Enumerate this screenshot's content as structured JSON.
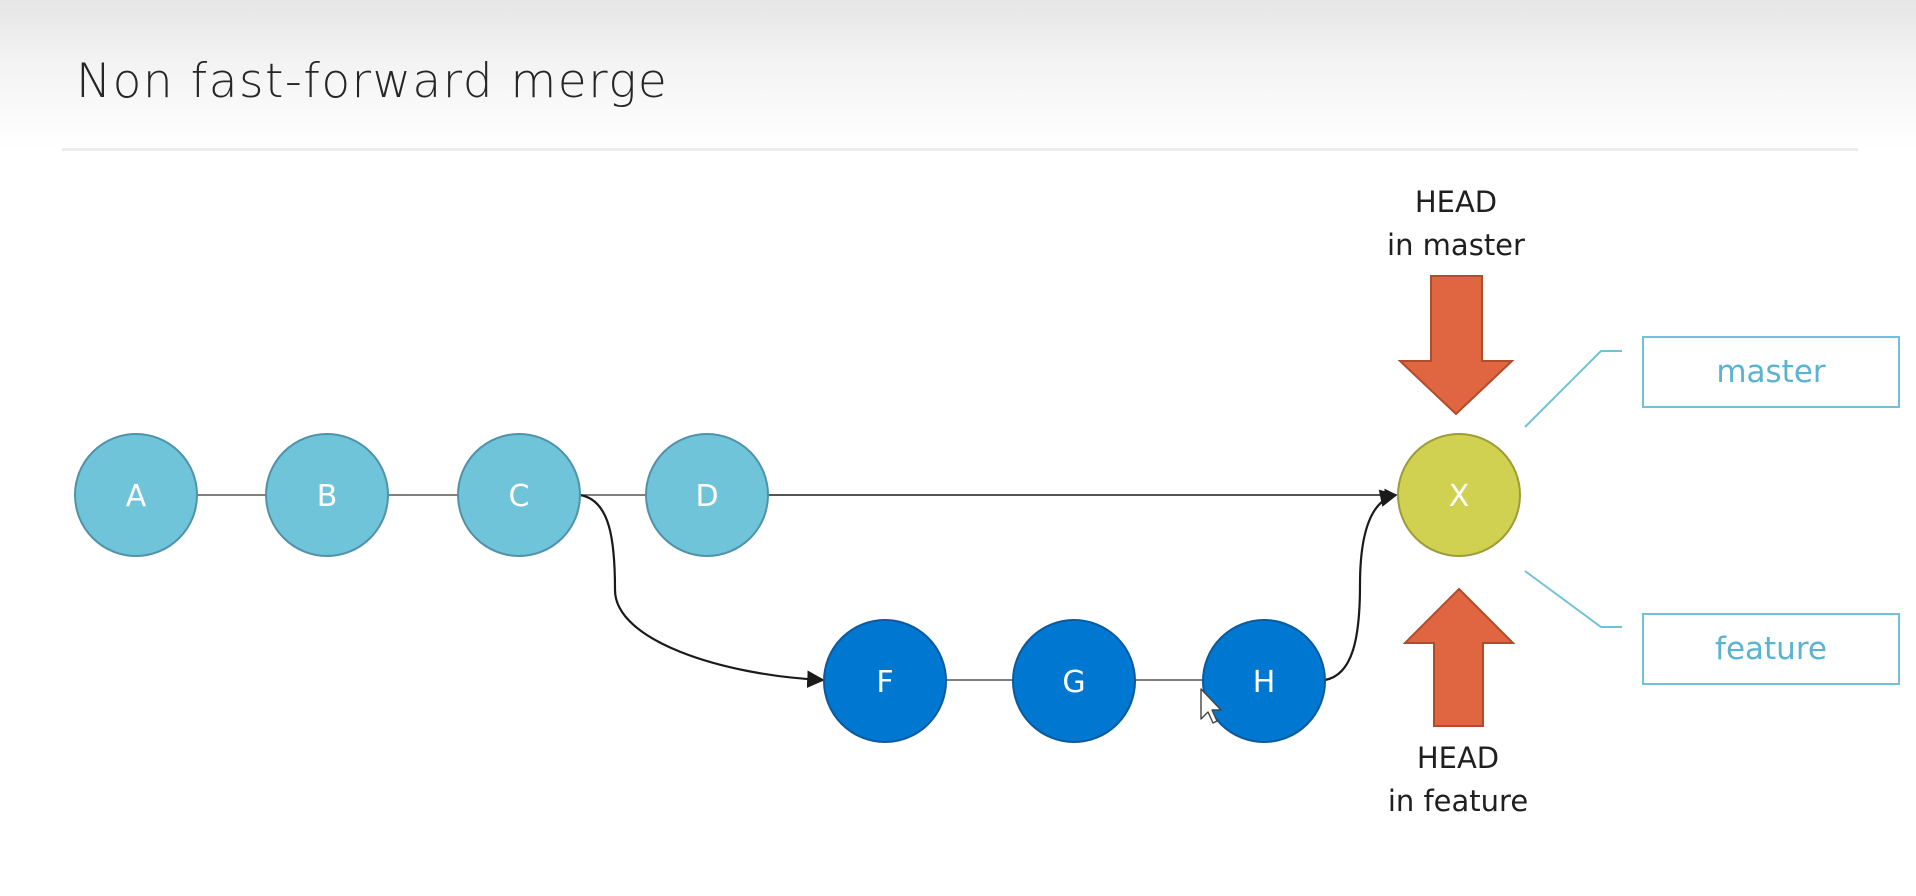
{
  "slide": {
    "title": "Non fast-forward merge"
  },
  "commits": {
    "a": "A",
    "b": "B",
    "c": "C",
    "d": "D",
    "f": "F",
    "g": "G",
    "h": "H",
    "x": "X"
  },
  "labels": {
    "head_master_line1": "HEAD",
    "head_master_line2": "in master",
    "head_feature_line1": "HEAD",
    "head_feature_line2": "in feature"
  },
  "branches": {
    "master": "master",
    "feature": "feature"
  },
  "colors": {
    "main_commit": "#70c4da",
    "feature_commit": "#0078d2",
    "merge_commit": "#d0d150",
    "head_arrow": "#e06642",
    "branch_label": "#72c1d8"
  }
}
